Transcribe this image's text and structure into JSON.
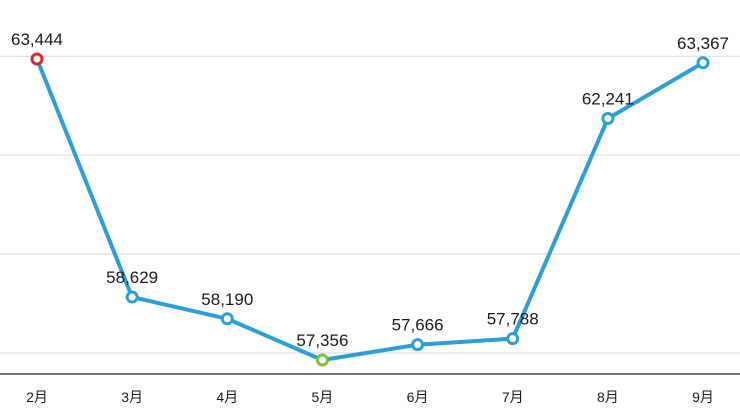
{
  "chart_data": {
    "type": "line",
    "title": "",
    "xlabel": "",
    "ylabel": "",
    "categories": [
      "2月",
      "3月",
      "4月",
      "5月",
      "6月",
      "7月",
      "8月",
      "9月"
    ],
    "series": [
      {
        "values": [
          63444,
          58629,
          58190,
          57356,
          57666,
          57788,
          62241,
          63367
        ],
        "labels": [
          "63,444",
          "58,629",
          "58,190",
          "57,356",
          "57,666",
          "57,788",
          "62,241",
          "63,367"
        ],
        "color": "#2a9fd8"
      }
    ],
    "highlight_points": {
      "max_index": 0,
      "max_color": "#d92a2a",
      "min_index": 3,
      "min_color": "#7cc43b"
    },
    "ylim": [
      56500,
      64500
    ],
    "grid": true,
    "gridlines": [
      57500,
      59500,
      61500,
      63500
    ]
  }
}
